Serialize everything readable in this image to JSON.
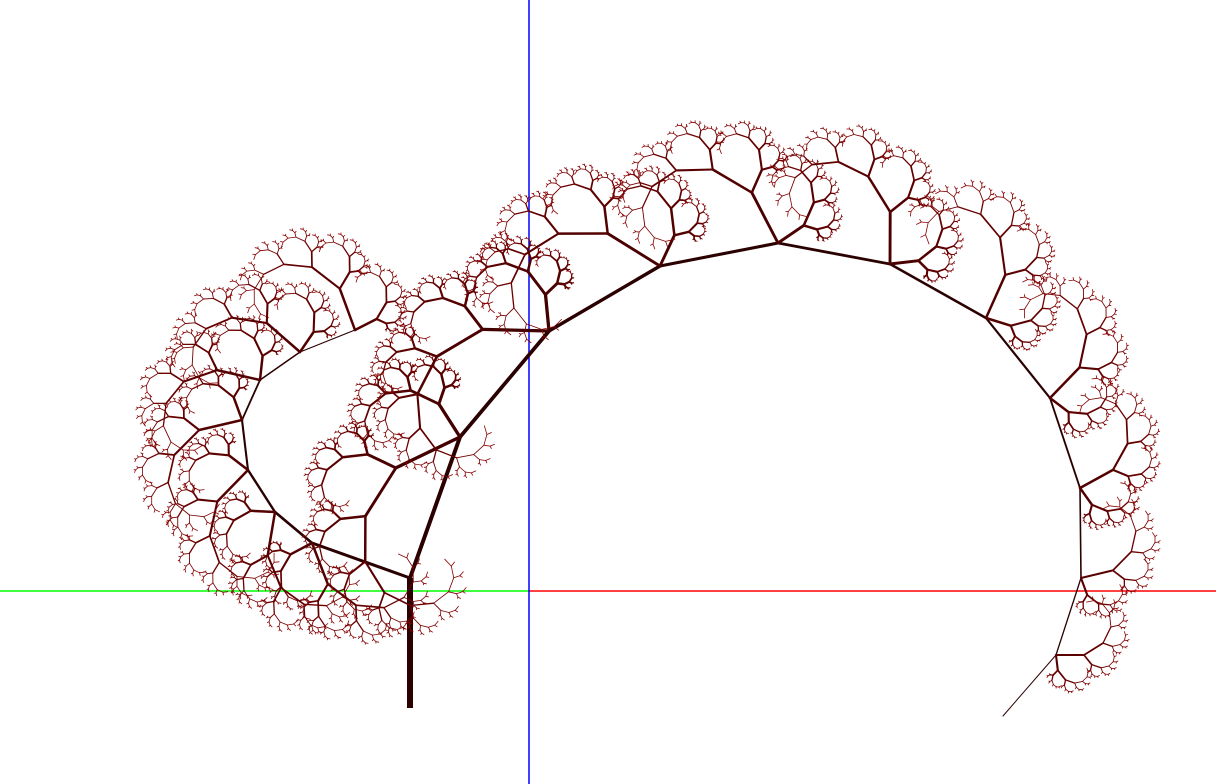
{
  "scene": {
    "background": "#ffffff",
    "axes": {
      "x_positive_color": "#ff0000",
      "x_negative_color": "#00ff00",
      "y_color": "#0000ff"
    },
    "fractal_tree": {
      "trunk_color": "#2a0000",
      "leaf_color": "#8b0000",
      "recursion_depth": 12,
      "branch_angle_deg": 32,
      "scale_factor": 0.8
    }
  }
}
